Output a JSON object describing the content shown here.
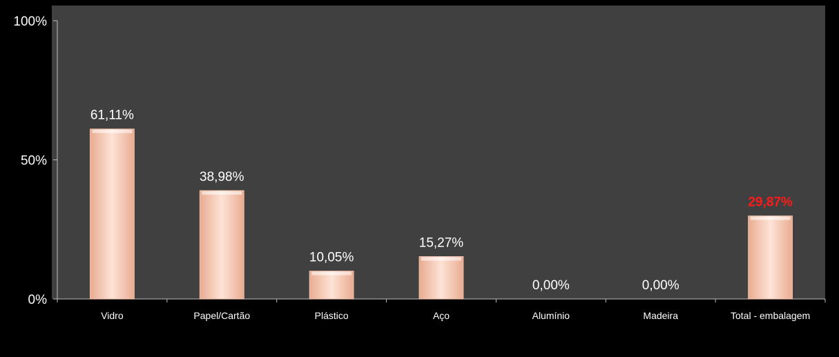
{
  "chart_data": {
    "type": "bar",
    "categories": [
      "Vidro",
      "Papel/Cartão",
      "Plástico",
      "Aço",
      "Alumínio",
      "Madeira",
      "Total - embalagem"
    ],
    "values": [
      61.11,
      38.98,
      10.05,
      15.27,
      0.0,
      0.0,
      29.87
    ],
    "data_labels": [
      "61,11%",
      "38,98%",
      "10,05%",
      "15,27%",
      "0,00%",
      "0,00%",
      "29,87%"
    ],
    "highlight_index": 6,
    "y_ticks": [
      {
        "value": 0,
        "label": "0%"
      },
      {
        "value": 50,
        "label": "50%"
      },
      {
        "value": 100,
        "label": "100%"
      }
    ],
    "ylim": [
      0,
      100
    ],
    "grid": false,
    "legend": "none",
    "colors": {
      "page_background": "#000000",
      "plot_background": "#404040",
      "bar_light": "#fde3d6",
      "bar_dark": "#e9ab90",
      "axis_text": "#ffffff",
      "highlight_label": "#ff1a1a"
    }
  }
}
